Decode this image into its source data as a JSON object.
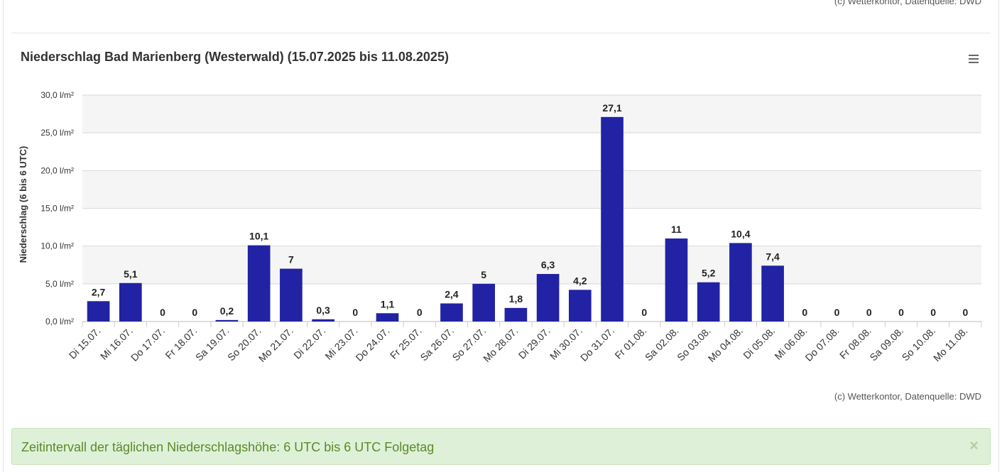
{
  "header": {
    "credit_top": "(c) Wetterkontor, Datenquelle: DWD"
  },
  "chart": {
    "title": "Niederschlag Bad Marienberg (Westerwald) (15.07.2025 bis 11.08.2025)",
    "credit": "(c) Wetterkontor, Datenquelle: DWD",
    "menu_icon": "hamburger-menu-icon"
  },
  "alert": {
    "text": "Zeitintervall der täglichen Niederschlagshöhe: 6 UTC bis 6 UTC Folgetag",
    "close_label": "×"
  },
  "colors": {
    "bar": "#2222a4",
    "band": "#f5f5f5",
    "grid": "#d8d8d8",
    "alert_bg": "#dff0d8",
    "alert_text": "#5a8a2a"
  },
  "chart_data": {
    "type": "bar",
    "ylabel": "Niederschlag (6 bis 6 UTC)",
    "ylim": [
      0,
      30
    ],
    "yticks": [
      "0,0 l/m²",
      "5,0 l/m²",
      "10,0 l/m²",
      "15,0 l/m²",
      "20,0 l/m²",
      "25,0 l/m²",
      "30,0 l/m²"
    ],
    "categories": [
      "Di 15.07.",
      "Mi 16.07.",
      "Do 17.07.",
      "Fr 18.07.",
      "Sa 19.07.",
      "So 20.07.",
      "Mo 21.07.",
      "Di 22.07.",
      "Mi 23.07.",
      "Do 24.07.",
      "Fr 25.07.",
      "Sa 26.07.",
      "So 27.07.",
      "Mo 28.07.",
      "Di 29.07.",
      "Mi 30.07.",
      "Do 31.07.",
      "Fr 01.08.",
      "Sa 02.08.",
      "So 03.08.",
      "Mo 04.08.",
      "Di 05.08.",
      "Mi 06.08.",
      "Do 07.08.",
      "Fr 08.08.",
      "Sa 09.08.",
      "So 10.08.",
      "Mo 11.08."
    ],
    "values": [
      2.7,
      5.1,
      0,
      0,
      0.2,
      10.1,
      7,
      0.3,
      0,
      1.1,
      0,
      2.4,
      5,
      1.8,
      6.3,
      4.2,
      27.1,
      0,
      11,
      5.2,
      10.4,
      7.4,
      0,
      0,
      0,
      0,
      0,
      0
    ],
    "labels": [
      "2,7",
      "5,1",
      "0",
      "0",
      "0,2",
      "10,1",
      "7",
      "0,3",
      "0",
      "1,1",
      "0",
      "2,4",
      "5",
      "1,8",
      "6,3",
      "4,2",
      "27,1",
      "0",
      "11",
      "5,2",
      "10,4",
      "7,4",
      "0",
      "0",
      "0",
      "0",
      "0",
      "0"
    ],
    "grid": true,
    "legend": "none"
  }
}
